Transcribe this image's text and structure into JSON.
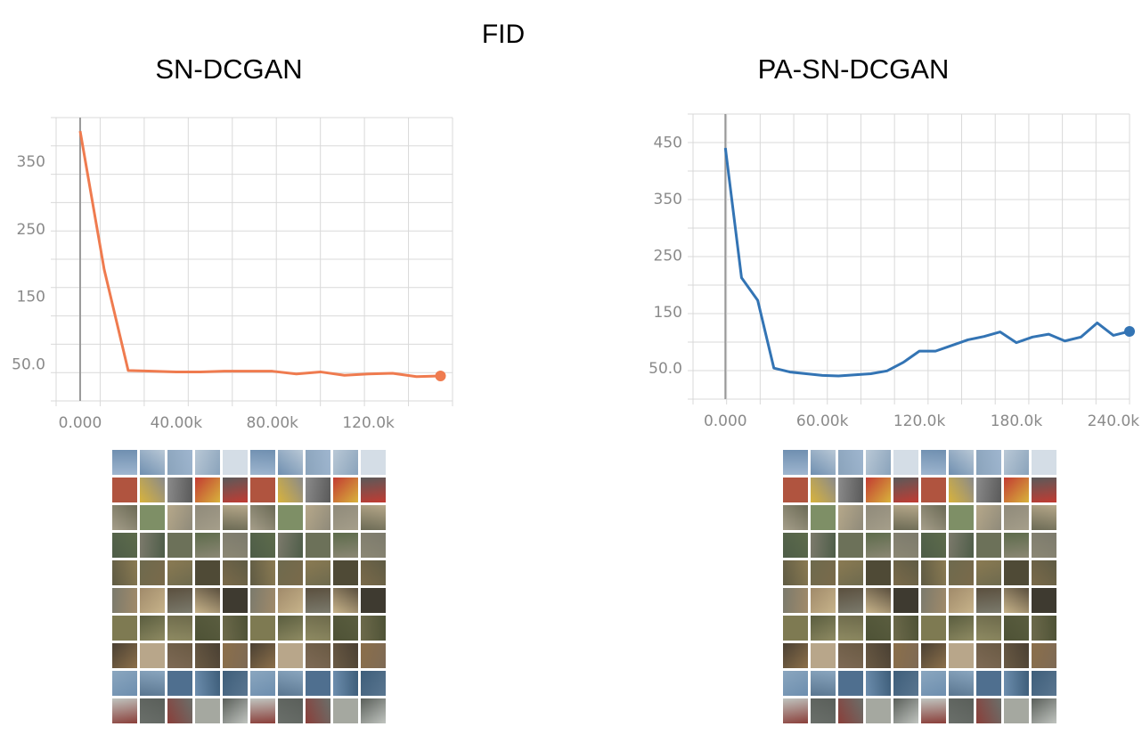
{
  "figure": {
    "title": "FID"
  },
  "chart_data": [
    {
      "type": "line",
      "title": "SN-DCGAN",
      "xlabel": "",
      "ylabel": "",
      "xlim": [
        -10000,
        155000
      ],
      "ylim": [
        -5,
        415
      ],
      "x_ticks": [
        0,
        40000,
        80000,
        120000
      ],
      "x_tick_labels": [
        "0.000",
        "40.00k",
        "80.00k",
        "120.0k"
      ],
      "y_ticks": [
        50,
        150,
        250,
        350
      ],
      "y_tick_labels": [
        "50.0",
        "150",
        "250",
        "350"
      ],
      "grid": true,
      "color": "#ef7b4f",
      "series": [
        {
          "x": [
            0,
            10000,
            20000,
            30000,
            40000,
            50000,
            60000,
            70000,
            80000,
            90000,
            100000,
            110000,
            120000,
            130000,
            140000,
            150000
          ],
          "y": [
            395,
            190,
            40,
            39,
            38,
            38,
            39,
            39,
            39,
            35,
            38,
            33,
            35,
            36,
            31,
            32
          ]
        }
      ]
    },
    {
      "type": "line",
      "title": "PA-SN-DCGAN",
      "xlabel": "",
      "ylabel": "",
      "xlim": [
        -20000,
        250000
      ],
      "ylim": [
        -5,
        500
      ],
      "x_ticks": [
        0,
        60000,
        120000,
        180000,
        240000
      ],
      "x_tick_labels": [
        "0.000",
        "60.00k",
        "120.0k",
        "180.0k",
        "240.0k"
      ],
      "y_ticks": [
        50,
        150,
        250,
        350,
        450
      ],
      "y_tick_labels": [
        "50.0",
        "150",
        "250",
        "350",
        "450"
      ],
      "grid": true,
      "color": "#3374b4",
      "series": [
        {
          "x": [
            0,
            10000,
            20000,
            30000,
            40000,
            50000,
            60000,
            70000,
            80000,
            90000,
            100000,
            110000,
            120000,
            130000,
            140000,
            150000,
            160000,
            170000,
            180000,
            190000,
            200000,
            210000,
            220000,
            230000,
            240000,
            250000
          ],
          "y": [
            440,
            210,
            170,
            50,
            43,
            40,
            37,
            36,
            38,
            40,
            45,
            60,
            80,
            80,
            90,
            100,
            106,
            114,
            95,
            105,
            110,
            98,
            105,
            130,
            108,
            115
          ]
        }
      ]
    }
  ],
  "sample_grids": [
    {
      "name": "sn-dcgan-samples"
    },
    {
      "name": "pa-sn-dcgan-samples"
    }
  ]
}
